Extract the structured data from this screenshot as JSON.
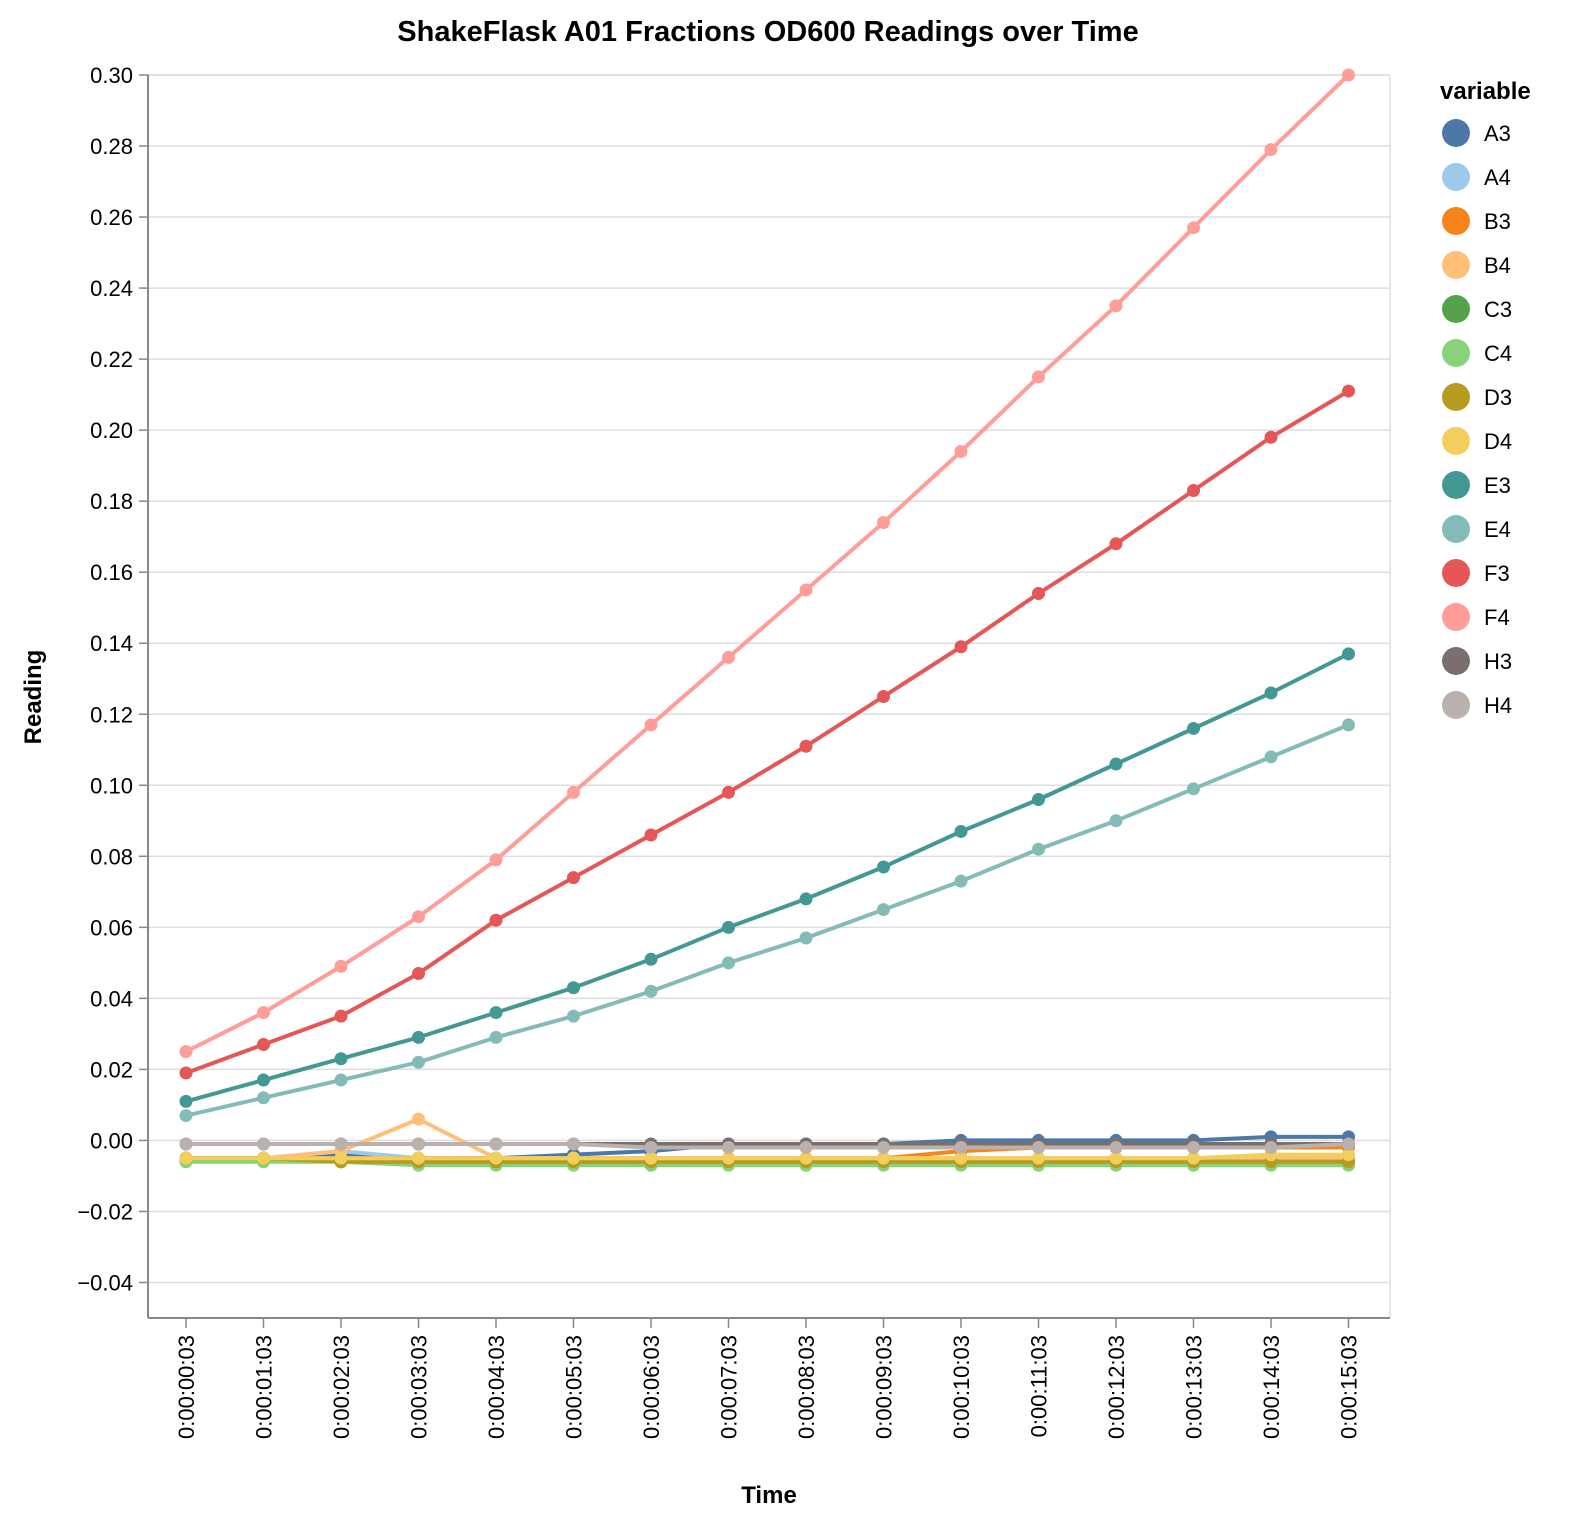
{
  "chart_data": {
    "type": "line",
    "title": "ShakeFlask A01 Fractions OD600 Readings over Time",
    "xlabel": "Time",
    "ylabel": "Reading",
    "legend_title": "variable",
    "legend_position": "right",
    "grid": true,
    "ylim": [
      -0.05,
      0.3
    ],
    "yticks": [
      -0.04,
      -0.02,
      0.0,
      0.02,
      0.04,
      0.06,
      0.08,
      0.1,
      0.12,
      0.14,
      0.16,
      0.18,
      0.2,
      0.22,
      0.24,
      0.26,
      0.28,
      0.3
    ],
    "ytick_labels": [
      "−0.04",
      "−0.02",
      "0.00",
      "0.02",
      "0.04",
      "0.06",
      "0.08",
      "0.10",
      "0.12",
      "0.14",
      "0.16",
      "0.18",
      "0.20",
      "0.22",
      "0.24",
      "0.26",
      "0.28",
      "0.30"
    ],
    "x": [
      "0:00:00:03",
      "0:00:01:03",
      "0:00:02:03",
      "0:00:03:03",
      "0:00:04:03",
      "0:00:05:03",
      "0:00:06:03",
      "0:00:07:03",
      "0:00:08:03",
      "0:00:09:03",
      "0:00:10:03",
      "0:00:11:03",
      "0:00:12:03",
      "0:00:13:03",
      "0:00:14:03",
      "0:00:15:03"
    ],
    "series": [
      {
        "name": "A3",
        "color": "#4c78a8",
        "values": [
          -0.005,
          -0.005,
          -0.004,
          -0.005,
          -0.005,
          -0.004,
          -0.003,
          -0.001,
          -0.001,
          -0.001,
          0.0,
          0.0,
          0.0,
          0.0,
          0.001,
          0.001
        ]
      },
      {
        "name": "A4",
        "color": "#9ecae9",
        "values": [
          -0.005,
          -0.005,
          -0.003,
          -0.005,
          -0.005,
          -0.005,
          -0.005,
          -0.005,
          -0.005,
          -0.005,
          -0.005,
          -0.005,
          -0.005,
          -0.005,
          -0.005,
          -0.005
        ]
      },
      {
        "name": "B3",
        "color": "#f58518",
        "values": [
          -0.005,
          -0.005,
          -0.005,
          -0.005,
          -0.005,
          -0.005,
          -0.005,
          -0.005,
          -0.005,
          -0.005,
          -0.003,
          -0.002,
          -0.002,
          -0.002,
          -0.002,
          -0.002
        ]
      },
      {
        "name": "B4",
        "color": "#ffbf79",
        "values": [
          -0.005,
          -0.005,
          -0.003,
          0.006,
          -0.005,
          -0.005,
          -0.005,
          -0.005,
          -0.005,
          -0.005,
          -0.005,
          -0.005,
          -0.005,
          -0.005,
          -0.005,
          -0.005
        ]
      },
      {
        "name": "C3",
        "color": "#54a24b",
        "values": [
          -0.005,
          -0.005,
          -0.006,
          -0.006,
          -0.006,
          -0.006,
          -0.006,
          -0.006,
          -0.006,
          -0.006,
          -0.006,
          -0.006,
          -0.006,
          -0.006,
          -0.006,
          -0.006
        ]
      },
      {
        "name": "C4",
        "color": "#88d27a",
        "values": [
          -0.006,
          -0.006,
          -0.006,
          -0.007,
          -0.007,
          -0.007,
          -0.007,
          -0.007,
          -0.007,
          -0.007,
          -0.007,
          -0.007,
          -0.007,
          -0.007,
          -0.007,
          -0.007
        ]
      },
      {
        "name": "D3",
        "color": "#b79a20",
        "values": [
          -0.005,
          -0.005,
          -0.006,
          -0.006,
          -0.006,
          -0.006,
          -0.006,
          -0.006,
          -0.006,
          -0.006,
          -0.006,
          -0.006,
          -0.006,
          -0.006,
          -0.006,
          -0.006
        ]
      },
      {
        "name": "D4",
        "color": "#f2cf5b",
        "values": [
          -0.005,
          -0.005,
          -0.005,
          -0.005,
          -0.005,
          -0.005,
          -0.005,
          -0.005,
          -0.005,
          -0.005,
          -0.005,
          -0.005,
          -0.005,
          -0.005,
          -0.004,
          -0.004
        ]
      },
      {
        "name": "E3",
        "color": "#439894",
        "values": [
          0.011,
          0.017,
          0.023,
          0.029,
          0.036,
          0.043,
          0.051,
          0.06,
          0.068,
          0.077,
          0.087,
          0.096,
          0.106,
          0.116,
          0.126,
          0.137
        ]
      },
      {
        "name": "E4",
        "color": "#83bcb6",
        "values": [
          0.007,
          0.012,
          0.017,
          0.022,
          0.029,
          0.035,
          0.042,
          0.05,
          0.057,
          0.065,
          0.073,
          0.082,
          0.09,
          0.099,
          0.108,
          0.117
        ]
      },
      {
        "name": "F3",
        "color": "#e45756",
        "values": [
          0.019,
          0.027,
          0.035,
          0.047,
          0.062,
          0.074,
          0.086,
          0.098,
          0.111,
          0.125,
          0.139,
          0.154,
          0.168,
          0.183,
          0.198,
          0.211
        ]
      },
      {
        "name": "F4",
        "color": "#ff9d98",
        "values": [
          0.025,
          0.036,
          0.049,
          0.063,
          0.079,
          0.098,
          0.117,
          0.136,
          0.155,
          0.174,
          0.194,
          0.215,
          0.235,
          0.257,
          0.279,
          0.3
        ]
      },
      {
        "name": "H3",
        "color": "#79706e",
        "values": [
          -0.001,
          -0.001,
          -0.001,
          -0.001,
          -0.001,
          -0.001,
          -0.001,
          -0.001,
          -0.001,
          -0.001,
          -0.001,
          -0.001,
          -0.001,
          -0.001,
          -0.001,
          -0.001
        ]
      },
      {
        "name": "H4",
        "color": "#bab0ac",
        "values": [
          -0.001,
          -0.001,
          -0.001,
          -0.001,
          -0.001,
          -0.001,
          -0.002,
          -0.002,
          -0.002,
          -0.002,
          -0.002,
          -0.002,
          -0.002,
          -0.002,
          -0.002,
          -0.001
        ]
      }
    ]
  }
}
